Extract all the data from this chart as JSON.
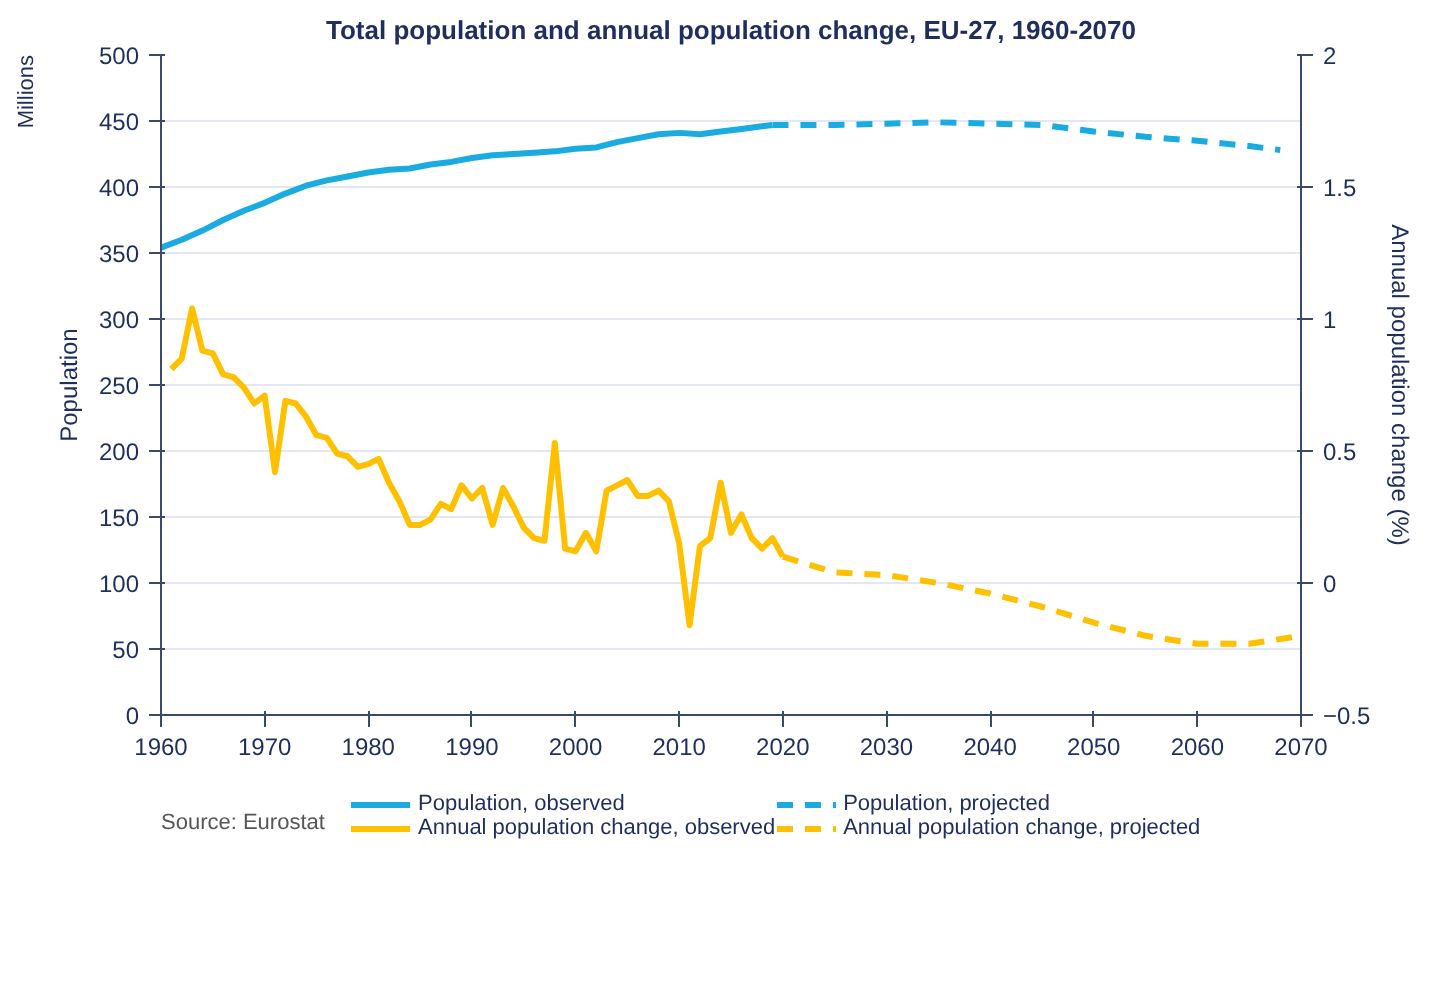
{
  "chart_data": {
    "type": "line",
    "title": "Total population and annual population change, EU-27, 1960-2070",
    "ylabel": "Population",
    "y2label": "Annual population change (%)",
    "annotations": [
      "Millions",
      "Source: Eurostat"
    ],
    "xlim": [
      1960,
      2070
    ],
    "xticks": [
      1960,
      1970,
      1980,
      1990,
      2000,
      2010,
      2020,
      2030,
      2040,
      2050,
      2060,
      2070
    ],
    "ylim": [
      0,
      500
    ],
    "yticks": [
      0,
      50,
      100,
      150,
      200,
      250,
      300,
      350,
      400,
      450,
      500
    ],
    "y2lim": [
      -0.5,
      2
    ],
    "y2ticks": [
      -0.5,
      0,
      0.5,
      1,
      1.5,
      2
    ],
    "grid": "y",
    "legend": "bottom",
    "series": [
      {
        "name": "Population, observed",
        "color": "#1aabe0",
        "line_style": "solid",
        "x": [
          1960,
          1962,
          1964,
          1966,
          1968,
          1970,
          1972,
          1974,
          1976,
          1978,
          1980,
          1982,
          1984,
          1986,
          1988,
          1990,
          1992,
          1994,
          1996,
          1998,
          2000,
          2002,
          2004,
          2006,
          2008,
          2010,
          2012,
          2014,
          2016,
          2018,
          2019
        ],
        "values": [
          354,
          360,
          367,
          375,
          382,
          388,
          395,
          401,
          405,
          408,
          411,
          413,
          414,
          417,
          419,
          422,
          424,
          425,
          426,
          427,
          429,
          430,
          434,
          437,
          440,
          441,
          440,
          442,
          444,
          446,
          447
        ]
      },
      {
        "name": "Population, projected",
        "color": "#1aabe0",
        "line_style": "dashed",
        "x": [
          2019,
          2025,
          2030,
          2035,
          2040,
          2045,
          2050,
          2055,
          2060,
          2065,
          2068
        ],
        "values": [
          447,
          447,
          448,
          449,
          448,
          447,
          442,
          438,
          435,
          431,
          428
        ]
      },
      {
        "name": "Annual population change, observed",
        "color": "#ffc000",
        "line_style": "solid",
        "axis": "y2",
        "x": [
          1961,
          1962,
          1963,
          1964,
          1965,
          1966,
          1967,
          1968,
          1969,
          1970,
          1971,
          1972,
          1973,
          1974,
          1975,
          1976,
          1977,
          1978,
          1979,
          1980,
          1981,
          1982,
          1983,
          1984,
          1985,
          1986,
          1987,
          1988,
          1989,
          1990,
          1991,
          1992,
          1993,
          1994,
          1995,
          1996,
          1997,
          1998,
          1999,
          2000,
          2001,
          2002,
          2003,
          2004,
          2005,
          2006,
          2007,
          2008,
          2009,
          2010,
          2011,
          2012,
          2013,
          2014,
          2015,
          2016,
          2017,
          2018,
          2019,
          2020
        ],
        "values": [
          0.81,
          0.85,
          1.04,
          0.88,
          0.87,
          0.79,
          0.78,
          0.74,
          0.68,
          0.71,
          0.42,
          0.69,
          0.68,
          0.63,
          0.56,
          0.55,
          0.49,
          0.48,
          0.44,
          0.45,
          0.47,
          0.38,
          0.31,
          0.22,
          0.22,
          0.24,
          0.3,
          0.28,
          0.37,
          0.32,
          0.36,
          0.22,
          0.36,
          0.29,
          0.21,
          0.17,
          0.16,
          0.53,
          0.13,
          0.12,
          0.19,
          0.12,
          0.35,
          0.37,
          0.39,
          0.33,
          0.33,
          0.35,
          0.31,
          0.15,
          -0.16,
          0.14,
          0.17,
          0.38,
          0.19,
          0.26,
          0.17,
          0.13,
          0.17,
          0.1
        ]
      },
      {
        "name": "Annual population change, projected",
        "color": "#ffc000",
        "line_style": "dashed",
        "axis": "y2",
        "x": [
          2020,
          2025,
          2030,
          2035,
          2040,
          2045,
          2050,
          2055,
          2060,
          2065,
          2070
        ],
        "values": [
          0.1,
          0.04,
          0.03,
          0.0,
          -0.04,
          -0.09,
          -0.15,
          -0.2,
          -0.23,
          -0.23,
          -0.2
        ]
      }
    ]
  }
}
